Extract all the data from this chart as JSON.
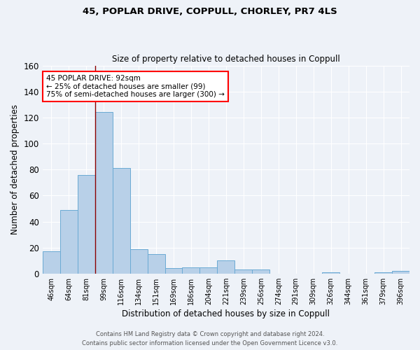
{
  "title1": "45, POPLAR DRIVE, COPPULL, CHORLEY, PR7 4LS",
  "title2": "Size of property relative to detached houses in Coppull",
  "xlabel": "Distribution of detached houses by size in Coppull",
  "ylabel": "Number of detached properties",
  "bar_labels": [
    "46sqm",
    "64sqm",
    "81sqm",
    "99sqm",
    "116sqm",
    "134sqm",
    "151sqm",
    "169sqm",
    "186sqm",
    "204sqm",
    "221sqm",
    "239sqm",
    "256sqm",
    "274sqm",
    "291sqm",
    "309sqm",
    "326sqm",
    "344sqm",
    "361sqm",
    "379sqm",
    "396sqm"
  ],
  "bar_values": [
    17,
    49,
    76,
    124,
    81,
    19,
    15,
    4,
    5,
    5,
    10,
    3,
    3,
    0,
    0,
    0,
    1,
    0,
    0,
    1,
    2
  ],
  "bar_color": "#b8d0e8",
  "bar_edge_color": "#6aaad4",
  "vline_x_index": 3,
  "vline_color": "#8b0000",
  "ylim": [
    0,
    160
  ],
  "yticks": [
    0,
    20,
    40,
    60,
    80,
    100,
    120,
    140,
    160
  ],
  "annotation_text": "45 POPLAR DRIVE: 92sqm\n← 25% of detached houses are smaller (99)\n75% of semi-detached houses are larger (300) →",
  "annotation_box_color": "white",
  "annotation_box_edge_color": "red",
  "footer_line1": "Contains HM Land Registry data © Crown copyright and database right 2024.",
  "footer_line2": "Contains public sector information licensed under the Open Government Licence v3.0.",
  "bg_color": "#eef2f8",
  "grid_color": "white"
}
